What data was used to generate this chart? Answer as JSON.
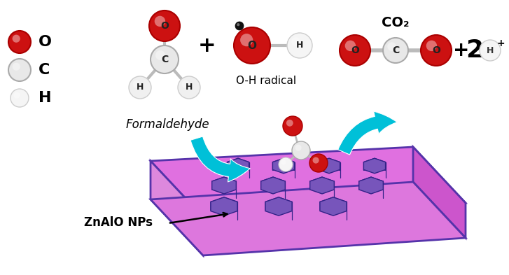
{
  "formaldehyde_label": "Formaldehyde",
  "oh_radical_label": "O-H radical",
  "co2_label": "CO₂",
  "znalo_label": "ZnAlO NPs",
  "colors": {
    "O_red": "#cc1111",
    "O_red_dark": "#aa0000",
    "C_gray": "#666666",
    "H_white": "#e8e8e8",
    "H_edge": "#aaaaaa",
    "bond_gray": "#bbbbbb",
    "bond_dark": "#999999",
    "cyan_arrow": "#00c0d8",
    "cyan_arrow_dark": "#0099aa",
    "plate_top": "#e070e0",
    "plate_side_right": "#cc55cc",
    "plate_side_left": "#dd88dd",
    "plate_bottom": "#cc55cc",
    "plate_edge": "#5533aa",
    "np_top": "#7755bb",
    "np_side": "#553399",
    "np_edge": "#332288",
    "black_dot": "#111111"
  }
}
